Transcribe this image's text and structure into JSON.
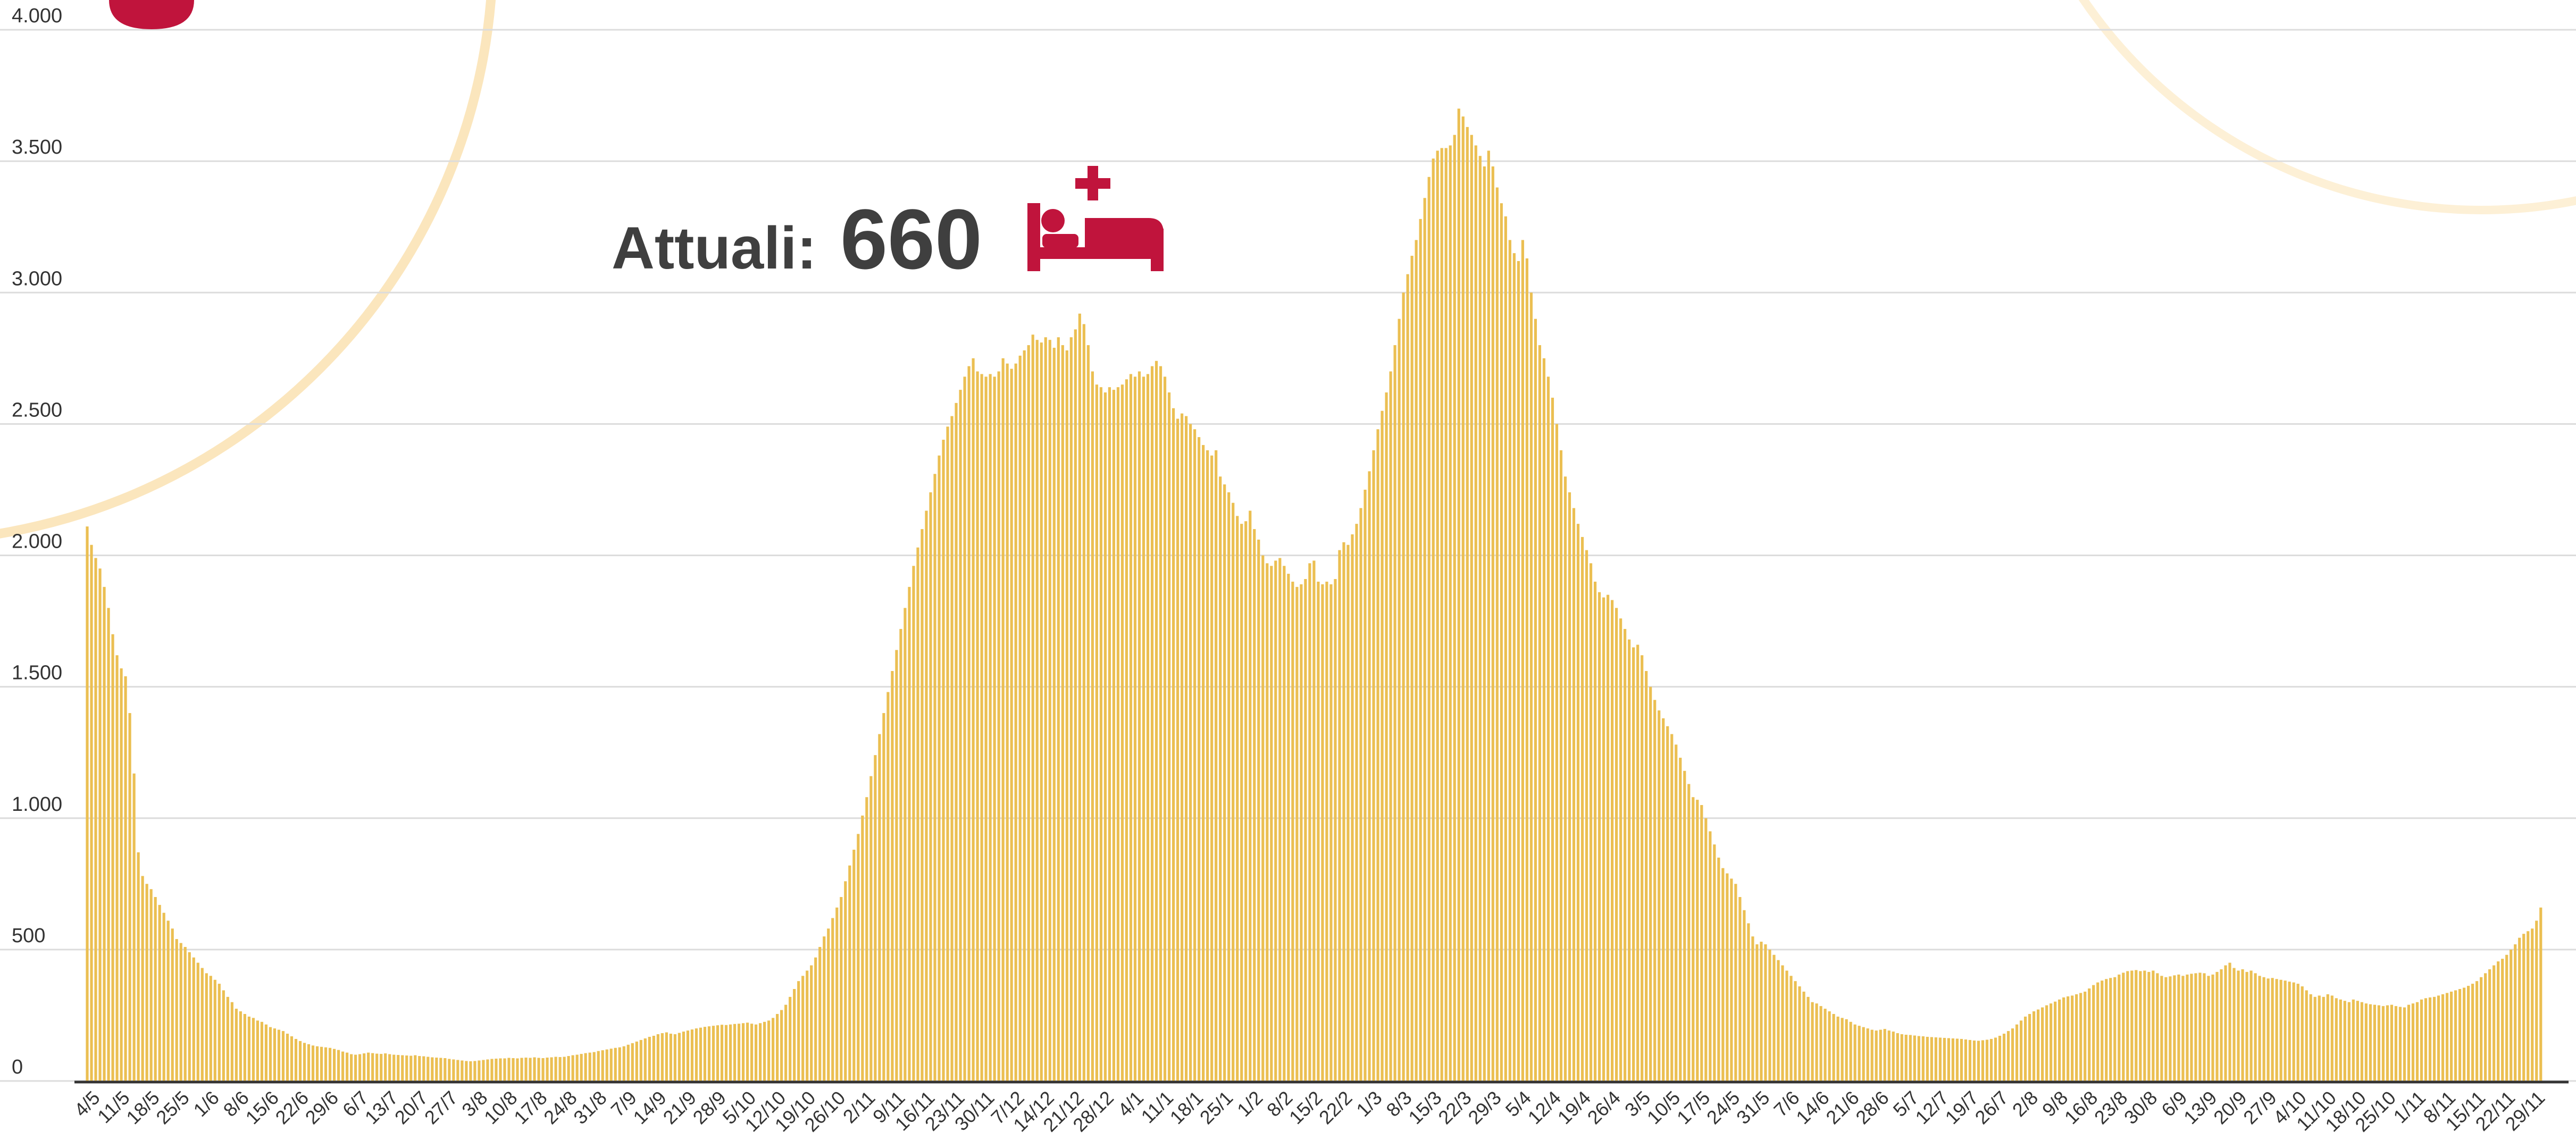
{
  "chart_data": {
    "type": "bar",
    "annotation": {
      "label": "Attuali:",
      "value": 660
    },
    "color": "#ebbf52",
    "grid": true,
    "ylim": [
      0,
      4000
    ],
    "yticks": [
      0,
      500,
      {
        "value": 1000,
        "label": "1.000"
      },
      {
        "value": 1500,
        "label": "1.500"
      },
      {
        "value": 2000,
        "label": "2.000"
      },
      {
        "value": 2500,
        "label": "2.500"
      },
      {
        "value": 3000,
        "label": "3.000"
      },
      {
        "value": 3500,
        "label": "3.500"
      },
      {
        "value": 4000,
        "label": "4.000"
      }
    ],
    "categories": [
      "4/5",
      null,
      null,
      null,
      null,
      null,
      null,
      "11/5",
      null,
      null,
      null,
      null,
      null,
      null,
      "18/5",
      null,
      null,
      null,
      null,
      null,
      null,
      "25/5",
      null,
      null,
      null,
      null,
      null,
      null,
      "1/6",
      null,
      null,
      null,
      null,
      null,
      null,
      "8/6",
      null,
      null,
      null,
      null,
      null,
      null,
      "15/6",
      null,
      null,
      null,
      null,
      null,
      null,
      "22/6",
      null,
      null,
      null,
      null,
      null,
      null,
      "29/6",
      null,
      null,
      null,
      null,
      null,
      null,
      "6/7",
      null,
      null,
      null,
      null,
      null,
      null,
      "13/7",
      null,
      null,
      null,
      null,
      null,
      null,
      "20/7",
      null,
      null,
      null,
      null,
      null,
      null,
      "27/7",
      null,
      null,
      null,
      null,
      null,
      null,
      "3/8",
      null,
      null,
      null,
      null,
      null,
      null,
      "10/8",
      null,
      null,
      null,
      null,
      null,
      null,
      "17/8",
      null,
      null,
      null,
      null,
      null,
      null,
      "24/8",
      null,
      null,
      null,
      null,
      null,
      null,
      "31/8",
      null,
      null,
      null,
      null,
      null,
      null,
      "7/9",
      null,
      null,
      null,
      null,
      null,
      null,
      "14/9",
      null,
      null,
      null,
      null,
      null,
      null,
      "21/9",
      null,
      null,
      null,
      null,
      null,
      null,
      "28/9",
      null,
      null,
      null,
      null,
      null,
      null,
      "5/10",
      null,
      null,
      null,
      null,
      null,
      null,
      "12/10",
      null,
      null,
      null,
      null,
      null,
      null,
      "19/10",
      null,
      null,
      null,
      null,
      null,
      null,
      "26/10",
      null,
      null,
      null,
      null,
      null,
      null,
      "2/11",
      null,
      null,
      null,
      null,
      null,
      null,
      "9/11",
      null,
      null,
      null,
      null,
      null,
      null,
      "16/11",
      null,
      null,
      null,
      null,
      null,
      null,
      "23/11",
      null,
      null,
      null,
      null,
      null,
      null,
      "30/11",
      null,
      null,
      null,
      null,
      null,
      null,
      "7/12",
      null,
      null,
      null,
      null,
      null,
      null,
      "14/12",
      null,
      null,
      null,
      null,
      null,
      null,
      "21/12",
      null,
      null,
      null,
      null,
      null,
      null,
      "28/12",
      null,
      null,
      null,
      null,
      null,
      null,
      "4/1",
      null,
      null,
      null,
      null,
      null,
      null,
      "11/1",
      null,
      null,
      null,
      null,
      null,
      null,
      "18/1",
      null,
      null,
      null,
      null,
      null,
      null,
      "25/1",
      null,
      null,
      null,
      null,
      null,
      null,
      "1/2",
      null,
      null,
      null,
      null,
      null,
      null,
      "8/2",
      null,
      null,
      null,
      null,
      null,
      null,
      "15/2",
      null,
      null,
      null,
      null,
      null,
      null,
      "22/2",
      null,
      null,
      null,
      null,
      null,
      null,
      "1/3",
      null,
      null,
      null,
      null,
      null,
      null,
      "8/3",
      null,
      null,
      null,
      null,
      null,
      null,
      "15/3",
      null,
      null,
      null,
      null,
      null,
      null,
      "22/3",
      null,
      null,
      null,
      null,
      null,
      null,
      "29/3",
      null,
      null,
      null,
      null,
      null,
      null,
      "5/4",
      null,
      null,
      null,
      null,
      null,
      null,
      "12/4",
      null,
      null,
      null,
      null,
      null,
      null,
      "19/4",
      null,
      null,
      null,
      null,
      null,
      null,
      "26/4",
      null,
      null,
      null,
      null,
      null,
      null,
      "3/5",
      null,
      null,
      null,
      null,
      null,
      null,
      "10/5",
      null,
      null,
      null,
      null,
      null,
      null,
      "17/5",
      null,
      null,
      null,
      null,
      null,
      null,
      "24/5",
      null,
      null,
      null,
      null,
      null,
      null,
      "31/5",
      null,
      null,
      null,
      null,
      null,
      null,
      "7/6",
      null,
      null,
      null,
      null,
      null,
      null,
      "14/6",
      null,
      null,
      null,
      null,
      null,
      null,
      "21/6",
      null,
      null,
      null,
      null,
      null,
      null,
      "28/6",
      null,
      null,
      null,
      null,
      null,
      null,
      "5/7",
      null,
      null,
      null,
      null,
      null,
      null,
      "12/7",
      null,
      null,
      null,
      null,
      null,
      null,
      "19/7",
      null,
      null,
      null,
      null,
      null,
      null,
      "26/7",
      null,
      null,
      null,
      null,
      null,
      null,
      "2/8",
      null,
      null,
      null,
      null,
      null,
      null,
      "9/8",
      null,
      null,
      null,
      null,
      null,
      null,
      "16/8",
      null,
      null,
      null,
      null,
      null,
      null,
      "23/8",
      null,
      null,
      null,
      null,
      null,
      null,
      "30/8",
      null,
      null,
      null,
      null,
      null,
      null,
      "6/9",
      null,
      null,
      null,
      null,
      null,
      null,
      "13/9",
      null,
      null,
      null,
      null,
      null,
      null,
      "20/9",
      null,
      null,
      null,
      null,
      null,
      null,
      "27/9",
      null,
      null,
      null,
      null,
      null,
      null,
      "4/10",
      null,
      null,
      null,
      null,
      null,
      null,
      "11/10",
      null,
      null,
      null,
      null,
      null,
      null,
      "18/10",
      null,
      null,
      null,
      null,
      null,
      null,
      "25/10",
      null,
      null,
      null,
      null,
      null,
      null,
      "1/11",
      null,
      null,
      null,
      null,
      null,
      null,
      "8/11",
      null,
      null,
      null,
      null,
      null,
      null,
      "15/11",
      null,
      null,
      null,
      null,
      null,
      null,
      "22/11",
      null,
      null,
      null,
      null,
      null,
      null,
      "29/11",
      null,
      null
    ],
    "values": [
      2110,
      2040,
      1990,
      1950,
      1880,
      1800,
      1700,
      1620,
      1570,
      1540,
      1400,
      1170,
      870,
      780,
      750,
      730,
      700,
      670,
      640,
      610,
      580,
      540,
      525,
      510,
      490,
      470,
      450,
      430,
      410,
      400,
      385,
      370,
      345,
      320,
      300,
      275,
      265,
      255,
      245,
      240,
      230,
      225,
      215,
      205,
      200,
      195,
      190,
      180,
      170,
      160,
      152,
      145,
      140,
      135,
      132,
      130,
      128,
      126,
      122,
      118,
      112,
      108,
      102,
      100,
      102,
      105,
      108,
      106,
      104,
      103,
      105,
      102,
      100,
      99,
      98,
      97,
      96,
      98,
      95,
      94,
      92,
      90,
      89,
      88,
      87,
      84,
      82,
      80,
      78,
      76,
      75,
      76,
      78,
      80,
      82,
      84,
      85,
      86,
      86,
      88,
      87,
      86,
      88,
      89,
      88,
      90,
      88,
      87,
      89,
      90,
      92,
      91,
      92,
      95,
      98,
      100,
      103,
      106,
      108,
      110,
      114,
      117,
      120,
      123,
      126,
      128,
      132,
      138,
      144,
      150,
      156,
      162,
      168,
      172,
      178,
      182,
      185,
      180,
      178,
      183,
      188,
      192,
      196,
      200,
      203,
      206,
      208,
      210,
      212,
      214,
      213,
      215,
      217,
      218,
      220,
      222,
      218,
      215,
      220,
      225,
      230,
      240,
      255,
      270,
      290,
      320,
      350,
      380,
      400,
      420,
      440,
      470,
      510,
      550,
      580,
      620,
      660,
      700,
      760,
      820,
      880,
      940,
      1010,
      1080,
      1160,
      1240,
      1320,
      1400,
      1480,
      1560,
      1640,
      1720,
      1800,
      1880,
      1960,
      2030,
      2100,
      2170,
      2240,
      2310,
      2380,
      2440,
      2490,
      2530,
      2580,
      2630,
      2680,
      2720,
      2750,
      2700,
      2690,
      2680,
      2690,
      2680,
      2700,
      2750,
      2730,
      2710,
      2730,
      2760,
      2780,
      2800,
      2840,
      2820,
      2810,
      2830,
      2820,
      2790,
      2830,
      2800,
      2780,
      2830,
      2860,
      2920,
      2880,
      2800,
      2700,
      2650,
      2640,
      2620,
      2640,
      2630,
      2640,
      2650,
      2670,
      2690,
      2680,
      2700,
      2680,
      2690,
      2720,
      2740,
      2720,
      2680,
      2620,
      2560,
      2520,
      2540,
      2530,
      2500,
      2480,
      2450,
      2420,
      2400,
      2380,
      2400,
      2300,
      2270,
      2240,
      2200,
      2150,
      2120,
      2130,
      2170,
      2100,
      2060,
      2000,
      1970,
      1960,
      1980,
      1990,
      1960,
      1930,
      1900,
      1880,
      1890,
      1910,
      1970,
      1980,
      1900,
      1890,
      1900,
      1890,
      1910,
      2020,
      2050,
      2040,
      2080,
      2120,
      2180,
      2250,
      2320,
      2400,
      2480,
      2550,
      2620,
      2700,
      2800,
      2900,
      3000,
      3070,
      3140,
      3200,
      3280,
      3360,
      3440,
      3510,
      3540,
      3550,
      3550,
      3560,
      3600,
      3700,
      3670,
      3630,
      3600,
      3560,
      3520,
      3480,
      3540,
      3480,
      3400,
      3340,
      3290,
      3200,
      3150,
      3120,
      3200,
      3130,
      3000,
      2900,
      2800,
      2750,
      2680,
      2600,
      2500,
      2400,
      2300,
      2240,
      2180,
      2120,
      2070,
      2020,
      1970,
      1900,
      1860,
      1840,
      1850,
      1830,
      1800,
      1760,
      1720,
      1680,
      1650,
      1660,
      1620,
      1560,
      1500,
      1450,
      1410,
      1380,
      1350,
      1320,
      1280,
      1230,
      1180,
      1130,
      1080,
      1070,
      1050,
      1000,
      950,
      900,
      850,
      810,
      790,
      770,
      750,
      700,
      650,
      600,
      550,
      520,
      530,
      520,
      500,
      480,
      460,
      440,
      420,
      400,
      380,
      360,
      340,
      320,
      300,
      295,
      285,
      275,
      265,
      255,
      245,
      240,
      235,
      225,
      215,
      210,
      205,
      200,
      195,
      192,
      195,
      198,
      192,
      188,
      182,
      178,
      176,
      175,
      173,
      171,
      170,
      168,
      167,
      166,
      165,
      164,
      163,
      162,
      161,
      160,
      158,
      156,
      154,
      153,
      155,
      157,
      160,
      165,
      172,
      180,
      190,
      200,
      215,
      230,
      245,
      255,
      265,
      272,
      280,
      288,
      295,
      302,
      310,
      318,
      322,
      325,
      330,
      335,
      340,
      352,
      365,
      375,
      382,
      388,
      392,
      395,
      405,
      412,
      418,
      420,
      422,
      418,
      420,
      415,
      420,
      410,
      400,
      395,
      398,
      402,
      405,
      400,
      405,
      408,
      410,
      412,
      410,
      400,
      405,
      415,
      425,
      440,
      450,
      430,
      420,
      425,
      415,
      420,
      410,
      400,
      395,
      390,
      392,
      388,
      385,
      382,
      378,
      375,
      370,
      360,
      345,
      330,
      320,
      325,
      320,
      330,
      325,
      315,
      310,
      305,
      300,
      310,
      305,
      300,
      295,
      292,
      290,
      288,
      285,
      288,
      290,
      285,
      282,
      280,
      290,
      295,
      300,
      310,
      315,
      318,
      320,
      325,
      330,
      335,
      340,
      345,
      350,
      355,
      362,
      370,
      380,
      395,
      410,
      425,
      440,
      455,
      465,
      480,
      500,
      520,
      545,
      560,
      570,
      580,
      610,
      660
    ]
  }
}
